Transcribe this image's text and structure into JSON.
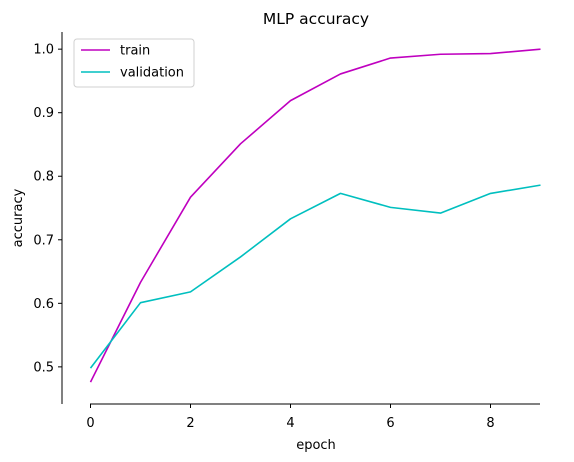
{
  "chart_data": {
    "type": "line",
    "title": "MLP accuracy",
    "xlabel": "epoch",
    "ylabel": "accuracy",
    "x": [
      0,
      1,
      2,
      3,
      4,
      5,
      6,
      7,
      8,
      9
    ],
    "xlim": [
      -0.45,
      9.45
    ],
    "ylim": [
      0.451,
      1.027
    ],
    "xticks": [
      0,
      2,
      4,
      6,
      8
    ],
    "yticks": [
      0.5,
      0.6,
      0.7,
      0.8,
      0.9,
      1.0
    ],
    "grid": false,
    "legend_position": "top-left",
    "series": [
      {
        "name": "train",
        "color": "#bf00bf",
        "values": [
          0.476,
          0.633,
          0.767,
          0.851,
          0.919,
          0.961,
          0.986,
          0.992,
          0.993,
          1.0
        ]
      },
      {
        "name": "validation",
        "color": "#00bfbf",
        "values": [
          0.498,
          0.601,
          0.618,
          0.673,
          0.733,
          0.773,
          0.751,
          0.742,
          0.773,
          0.786
        ]
      }
    ]
  }
}
